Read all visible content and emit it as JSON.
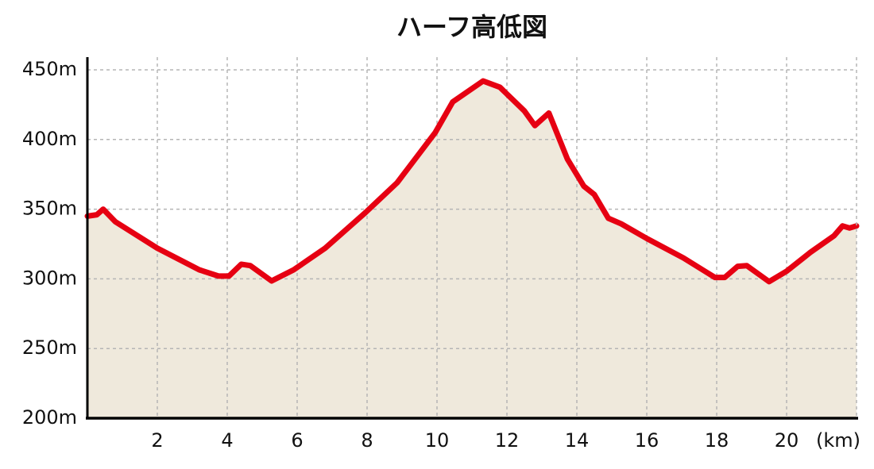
{
  "chart_data": {
    "type": "area",
    "title": "ハーフ高低図",
    "x_label": "(km)",
    "x": [
      0,
      0.27,
      0.45,
      0.8,
      2,
      3.2,
      3.75,
      4.05,
      4.4,
      4.66,
      5.27,
      5.9,
      6.8,
      7.95,
      8.86,
      9.95,
      10.45,
      11.32,
      11.8,
      12.5,
      12.8,
      13.2,
      13.73,
      14.2,
      14.5,
      14.9,
      15.27,
      16,
      17.05,
      17.95,
      18.23,
      18.6,
      18.86,
      19.5,
      20,
      20.68,
      21.36,
      21.6,
      21.8,
      22
    ],
    "values": [
      345,
      346,
      350,
      341,
      322,
      306.5,
      302,
      302,
      310.5,
      309.5,
      298.5,
      306.5,
      322,
      347.5,
      369,
      405,
      427,
      442,
      437.5,
      420.5,
      410,
      419,
      386,
      366.5,
      360.5,
      343.5,
      339.5,
      329,
      315,
      301,
      301,
      309,
      309.5,
      298,
      305.5,
      319,
      331,
      338,
      336.5,
      338
    ],
    "color": "#e60012",
    "area_color": "#efe9dc",
    "xlim": [
      0,
      22
    ],
    "xticks": [
      2,
      4,
      6,
      8,
      10,
      12,
      14,
      16,
      18,
      20
    ],
    "ylim": [
      200,
      450
    ],
    "yticks": [
      {
        "value": 200,
        "label": "200m"
      },
      {
        "value": 250,
        "label": "250m"
      },
      {
        "value": 300,
        "label": "300m"
      },
      {
        "value": 350,
        "label": "350m"
      },
      {
        "value": 400,
        "label": "400m"
      },
      {
        "value": 450,
        "label": "450m"
      }
    ],
    "grid": true
  }
}
